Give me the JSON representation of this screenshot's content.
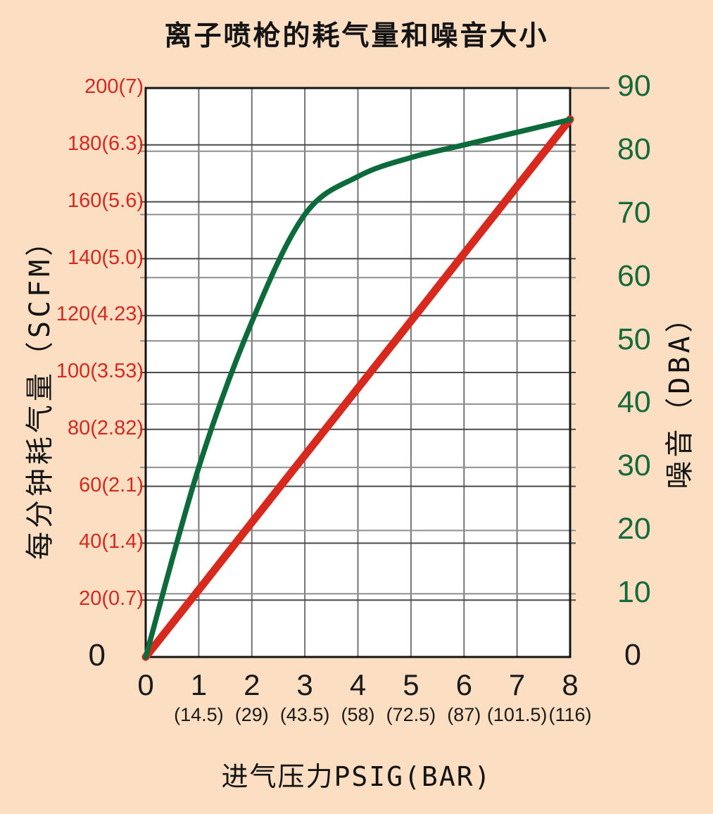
{
  "title": "离子喷枪的耗气量和噪音大小",
  "colors": {
    "background": "#fcdfc3",
    "plot_background": "#ffffff",
    "border": "#141414",
    "grid_major": "#4a4a4a",
    "grid_minor": "#8f8f8f",
    "grid_vertical": "#757575",
    "left_axis": "#d6281e",
    "right_axis": "#15693a",
    "series_air": "#d8291e",
    "series_noise": "#0d6b3b",
    "text": "#1a1a1a"
  },
  "chart_data": {
    "type": "line",
    "title": "离子喷枪的耗气量和噪音大小",
    "xlabel": "进气压力PSIG(BAR)",
    "x": [
      0,
      1,
      2,
      3,
      4,
      5,
      6,
      7,
      8
    ],
    "x_tick_labels": [
      "0",
      "1",
      "2",
      "3",
      "4",
      "5",
      "6",
      "7",
      "8"
    ],
    "x_sub_tick_labels": [
      "",
      "(14.5)",
      "(29)",
      "(43.5)",
      "(58)",
      "(72.5)",
      "(87)",
      "(101.5)",
      "(116)"
    ],
    "left_axis": {
      "label": "每分钟耗气量（SCFM）",
      "range": [
        0,
        200
      ],
      "tick_values": [
        0,
        20,
        40,
        60,
        80,
        100,
        120,
        140,
        160,
        180,
        200
      ],
      "tick_labels": [
        "0",
        "20(0.7)",
        "40(1.4)",
        "60(2.1)",
        "80(2.82)",
        "100(3.53)",
        "120(4.23)",
        "140(5.0)",
        "160(5.6)",
        "180(6.3)",
        "200(7)"
      ]
    },
    "right_axis": {
      "label": "噪音（DBA）",
      "range": [
        0,
        90
      ],
      "tick_values": [
        0,
        10,
        20,
        30,
        40,
        50,
        60,
        70,
        80,
        90
      ],
      "tick_labels": [
        "0",
        "10",
        "20",
        "30",
        "40",
        "50",
        "60",
        "70",
        "80",
        "90"
      ]
    },
    "grid": true,
    "legend": false,
    "series": [
      {
        "name": "air_consumption_scfm",
        "axis": "left",
        "color": "#d8291e",
        "stroke_width": 11,
        "smooth": false,
        "values": [
          0,
          23.6,
          47.3,
          70.9,
          94.5,
          118.1,
          141.8,
          165.4,
          189
        ]
      },
      {
        "name": "noise_dba",
        "axis": "right",
        "color": "#0d6b3b",
        "stroke_width": 7.5,
        "smooth": true,
        "values": [
          0,
          30,
          53,
          70,
          76,
          79,
          81,
          83,
          85
        ]
      }
    ]
  }
}
